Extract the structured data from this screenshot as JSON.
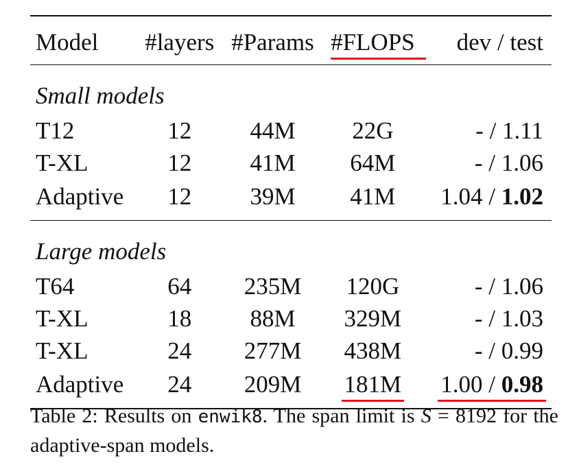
{
  "table": {
    "headers": {
      "model": "Model",
      "layers": "#layers",
      "params": "#Params",
      "flops": "#FLOPS",
      "score": "dev / test"
    },
    "groups": [
      {
        "label": "Small models",
        "rows": [
          {
            "model": "T12",
            "layers": "12",
            "params": "44M",
            "flops": "22G",
            "dev": "-",
            "sep": " / ",
            "test": "1.11",
            "test_bold": false
          },
          {
            "model": "T-XL",
            "layers": "12",
            "params": "41M",
            "flops": "64M",
            "dev": "-",
            "sep": " / ",
            "test": "1.06",
            "test_bold": false
          },
          {
            "model": "Adaptive",
            "layers": "12",
            "params": "39M",
            "flops": "41M",
            "dev": "1.04",
            "sep": " / ",
            "test": "1.02",
            "test_bold": true
          }
        ]
      },
      {
        "label": "Large models",
        "rows": [
          {
            "model": "T64",
            "layers": "64",
            "params": "235M",
            "flops": "120G",
            "dev": "-",
            "sep": " / ",
            "test": "1.06",
            "test_bold": false
          },
          {
            "model": "T-XL",
            "layers": "18",
            "params": "88M",
            "flops": "329M",
            "dev": "-",
            "sep": " / ",
            "test": "1.03",
            "test_bold": false
          },
          {
            "model": "T-XL",
            "layers": "24",
            "params": "277M",
            "flops": "438M",
            "dev": "-",
            "sep": " / ",
            "test": "0.99",
            "test_bold": false
          },
          {
            "model": "Adaptive",
            "layers": "24",
            "params": "209M",
            "flops": "181M",
            "dev": "1.00",
            "sep": " / ",
            "test": "0.98",
            "test_bold": true
          }
        ]
      }
    ]
  },
  "caption": {
    "prefix": "Table 2: Results on ",
    "dataset": "enwik8",
    "middle": ". The span limit is ",
    "symbol": "S",
    "equals": " = ",
    "value": "8192",
    "suffix": " for the adaptive-span models."
  },
  "colors": {
    "text": "#111111",
    "annotation_underline": "#e0141e"
  }
}
